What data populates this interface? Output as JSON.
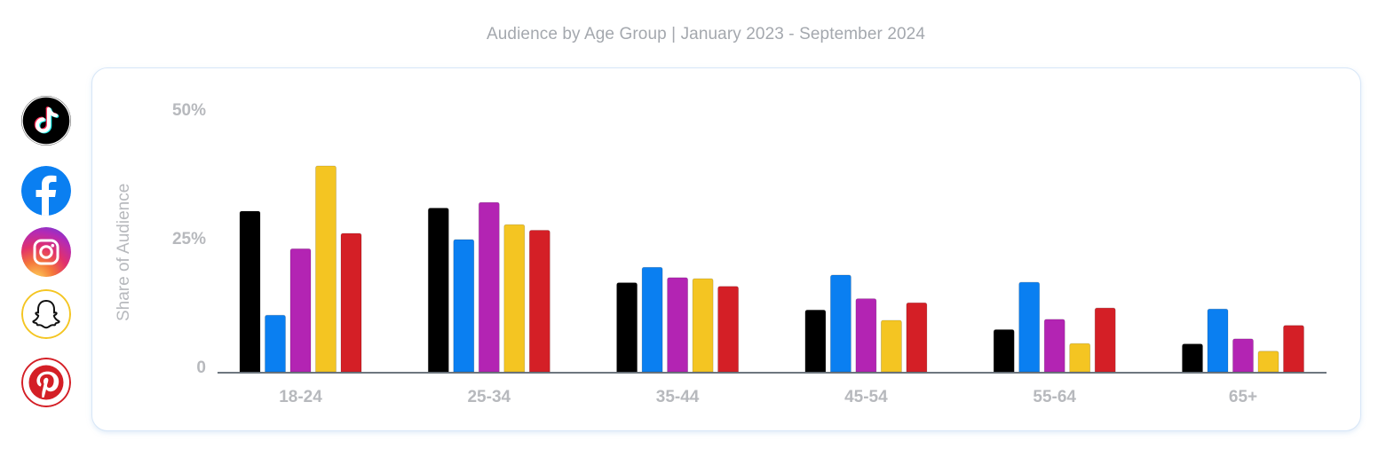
{
  "title": "Audience by Age Group | January 2023 - September 2024",
  "legend": [
    {
      "platform": "TikTok",
      "icon": "tiktok-icon",
      "color": "#000000"
    },
    {
      "platform": "Facebook",
      "icon": "facebook-icon",
      "color": "#0a7ff1"
    },
    {
      "platform": "Instagram",
      "icon": "instagram-icon",
      "color": "#b324b3"
    },
    {
      "platform": "Snapchat",
      "icon": "snapchat-icon",
      "color": "#f4c522"
    },
    {
      "platform": "Pinterest",
      "icon": "pinterest-icon",
      "color": "#d41f26"
    }
  ],
  "chart_data": {
    "type": "bar",
    "title": "Audience by Age Group | January 2023 - September 2024",
    "ylabel": "Share of Audience",
    "xlabel": "",
    "ylim": [
      0,
      50
    ],
    "yticks": [
      {
        "value": 0,
        "label": "0"
      },
      {
        "value": 25,
        "label": "25%"
      },
      {
        "value": 50,
        "label": "50%"
      }
    ],
    "grid": false,
    "categories": [
      "18-24",
      "25-34",
      "35-44",
      "45-54",
      "55-64",
      "65+"
    ],
    "series": [
      {
        "platform": "TikTok",
        "color": "#000000",
        "values": [
          31.2,
          31.8,
          17.3,
          12.0,
          8.2,
          5.4
        ]
      },
      {
        "platform": "Facebook",
        "color": "#0a7ff1",
        "values": [
          11.0,
          25.7,
          20.3,
          18.8,
          17.4,
          12.2
        ]
      },
      {
        "platform": "Instagram",
        "color": "#b324b3",
        "values": [
          23.9,
          32.9,
          18.3,
          14.2,
          10.2,
          6.4
        ]
      },
      {
        "platform": "Snapchat",
        "color": "#f4c522",
        "values": [
          40.0,
          28.6,
          18.1,
          10.0,
          5.5,
          4.0
        ]
      },
      {
        "platform": "Pinterest",
        "color": "#d41f26",
        "values": [
          26.9,
          27.5,
          16.6,
          13.4,
          12.4,
          9.0
        ]
      }
    ]
  }
}
